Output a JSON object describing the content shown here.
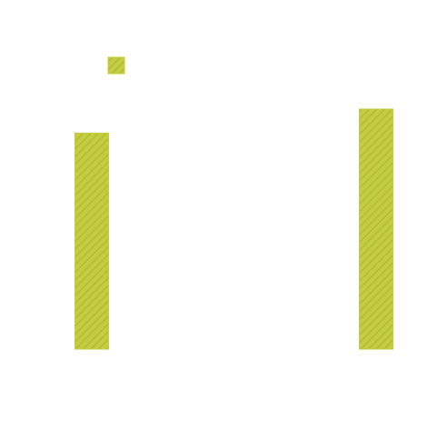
{
  "chart_data": {
    "type": "bar",
    "categories": [
      "",
      ""
    ],
    "series": [
      {
        "values": [
          0.9,
          1.0
        ]
      }
    ],
    "ylim": [
      0,
      1.0
    ],
    "legend": {
      "placement": "top-left"
    },
    "grid": false,
    "axes_visible": false,
    "bar_color": "#c3cd3f",
    "hatch_color": "#9aa52b",
    "hatch": "diagonal"
  }
}
